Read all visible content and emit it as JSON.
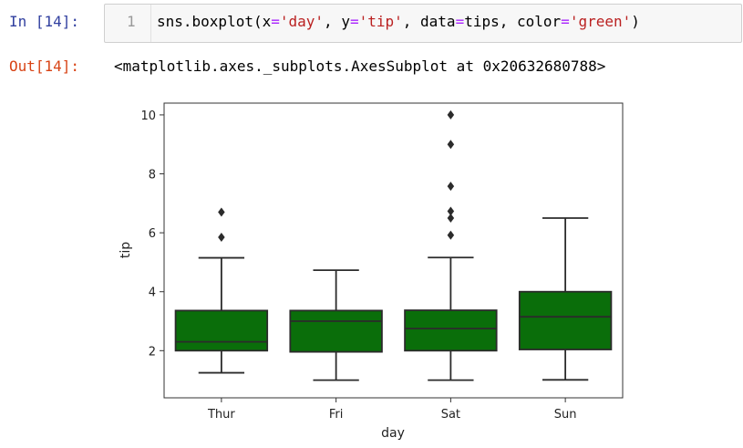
{
  "cell": {
    "in_prompt": "In [14]:",
    "line_number": "1",
    "code": {
      "func": "sns.boxplot(",
      "arg1": "x",
      "eq1": "=",
      "val1": "'day'",
      "sep1": ", ",
      "arg2": "y",
      "eq2": "=",
      "val2": "'tip'",
      "sep2": ", ",
      "arg3": "data",
      "eq3": "=",
      "val3": "tips",
      "sep3": ", ",
      "arg4": "color",
      "eq4": "=",
      "val4": "'green'",
      "close": ")"
    },
    "out_prompt": "Out[14]:",
    "out_text": "<matplotlib.axes._subplots.AxesSubplot at 0x20632680788>"
  },
  "chart_data": {
    "type": "boxplot",
    "xlabel": "day",
    "ylabel": "tip",
    "categories": [
      "Thur",
      "Fri",
      "Sat",
      "Sun"
    ],
    "ylim": [
      0.4,
      10.4
    ],
    "yticks": [
      "2",
      "4",
      "6",
      "8",
      "10"
    ],
    "grid": false,
    "box_color": "#0a6e0a",
    "edge_color": "#2b2b2b",
    "boxes": [
      {
        "category": "Thur",
        "whisker_low": 1.25,
        "q1": 2.0,
        "median": 2.3,
        "q3": 3.36,
        "whisker_high": 5.15,
        "outliers": [
          5.85,
          6.7
        ]
      },
      {
        "category": "Fri",
        "whisker_low": 1.0,
        "q1": 1.96,
        "median": 3.0,
        "q3": 3.36,
        "whisker_high": 4.73,
        "outliers": []
      },
      {
        "category": "Sat",
        "whisker_low": 1.0,
        "q1": 2.0,
        "median": 2.75,
        "q3": 3.37,
        "whisker_high": 5.16,
        "outliers": [
          5.92,
          6.5,
          6.73,
          7.58,
          9.0,
          10.0
        ]
      },
      {
        "category": "Sun",
        "whisker_low": 1.01,
        "q1": 2.04,
        "median": 3.15,
        "q3": 4.0,
        "whisker_high": 6.5,
        "outliers": []
      }
    ]
  }
}
